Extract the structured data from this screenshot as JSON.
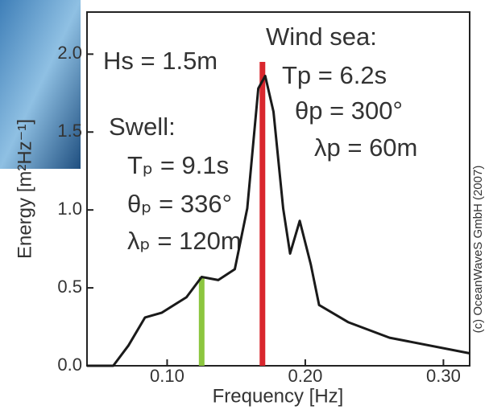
{
  "chart_data": {
    "type": "line",
    "xlabel": "Frequency [Hz]",
    "ylabel": "Energy [m²Hz⁻¹]",
    "x": [
      0.042,
      0.061,
      0.072,
      0.084,
      0.096,
      0.114,
      0.125,
      0.137,
      0.149,
      0.158,
      0.166,
      0.171,
      0.177,
      0.184,
      0.189,
      0.196,
      0.204,
      0.21,
      0.231,
      0.261,
      0.319
    ],
    "series": [
      {
        "color": "#1a1a1a",
        "values": [
          0,
          0,
          0.13,
          0.31,
          0.34,
          0.44,
          0.57,
          0.55,
          0.62,
          1.01,
          1.78,
          1.86,
          1.63,
          1.01,
          0.72,
          0.93,
          0.65,
          0.39,
          0.28,
          0.18,
          0.08
        ]
      }
    ],
    "markers": [
      {
        "x": 0.125,
        "value": 0.57,
        "color": "#8cc63f"
      },
      {
        "x": 0.169,
        "value": 1.95,
        "color": "#d9272e"
      }
    ],
    "xlim": [
      0.042,
      0.319
    ],
    "ylim": [
      0,
      2.27
    ],
    "xticks": [
      {
        "value": 0.1,
        "label": "0.10"
      },
      {
        "value": 0.2,
        "label": "0.20"
      },
      {
        "value": 0.3,
        "label": "0.30"
      }
    ],
    "yticks": [
      {
        "value": 0,
        "label": "0.0"
      },
      0.5,
      {
        "value": 1,
        "label": "1.0"
      },
      1.5,
      {
        "value": 2,
        "label": "2.0"
      }
    ],
    "annotations": {
      "hs": "Hs = 1.5m",
      "wind_title": "Wind sea:",
      "wind_tp": "Tp = 6.2s",
      "wind_theta": "θp = 300°",
      "wind_lambda": "λp = 60m",
      "swell_title": "Swell:",
      "swell_tp": "Tₚ = 9.1s",
      "swell_theta": "θₚ = 336°",
      "swell_lambda": "λₚ = 120m"
    },
    "credit": "(c) OceanWaveS GmbH (2007)"
  }
}
